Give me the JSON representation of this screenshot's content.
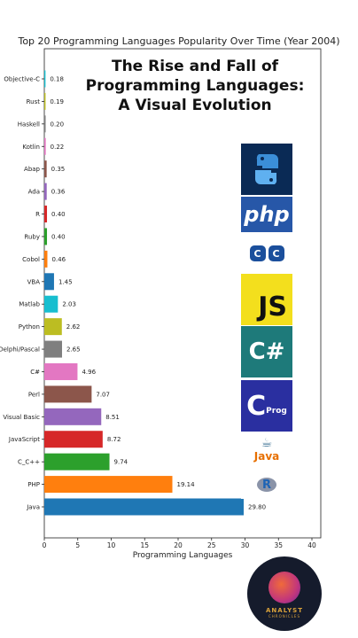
{
  "chart_data": {
    "type": "bar",
    "orientation": "horizontal",
    "title": "Top 20 Programming Languages Popularity Over Time (Year 2004)",
    "xlabel": "Programming Languages",
    "ylabel": "",
    "xlim": [
      0,
      41
    ],
    "x_ticks": [
      "0",
      "5",
      "10",
      "15",
      "20",
      "25",
      "30",
      "35",
      "40"
    ],
    "x_tick_values": [
      0,
      5,
      10,
      15,
      20,
      25,
      30,
      35,
      40
    ],
    "grid": false,
    "legend": "none",
    "bars": [
      {
        "label": "Objective-C",
        "value": 0.18,
        "value_label": "0.18",
        "color": "#17becf"
      },
      {
        "label": "Rust",
        "value": 0.19,
        "value_label": "0.19",
        "color": "#bcbd22"
      },
      {
        "label": "Haskell",
        "value": 0.2,
        "value_label": "0.20",
        "color": "#7f7f7f"
      },
      {
        "label": "Kotlin",
        "value": 0.22,
        "value_label": "0.22",
        "color": "#e377c2"
      },
      {
        "label": "Abap",
        "value": 0.35,
        "value_label": "0.35",
        "color": "#8c564b"
      },
      {
        "label": "Ada",
        "value": 0.36,
        "value_label": "0.36",
        "color": "#9467bd"
      },
      {
        "label": "R",
        "value": 0.4,
        "value_label": "0.40",
        "color": "#d62728"
      },
      {
        "label": "Ruby",
        "value": 0.4,
        "value_label": "0.40",
        "color": "#2ca02c"
      },
      {
        "label": "Cobol",
        "value": 0.46,
        "value_label": "0.46",
        "color": "#ff7f0e"
      },
      {
        "label": "VBA",
        "value": 1.45,
        "value_label": "1.45",
        "color": "#1f77b4"
      },
      {
        "label": "Matlab",
        "value": 2.03,
        "value_label": "2.03",
        "color": "#17becf"
      },
      {
        "label": "Python",
        "value": 2.62,
        "value_label": "2.62",
        "color": "#bcbd22"
      },
      {
        "label": "Delphi/Pascal",
        "value": 2.65,
        "value_label": "2.65",
        "color": "#7f7f7f"
      },
      {
        "label": "C#",
        "value": 4.96,
        "value_label": "4.96",
        "color": "#e377c2"
      },
      {
        "label": "Perl",
        "value": 7.07,
        "value_label": "7.07",
        "color": "#8c564b"
      },
      {
        "label": "Visual Basic",
        "value": 8.51,
        "value_label": "8.51",
        "color": "#9467bd"
      },
      {
        "label": "JavaScript",
        "value": 8.72,
        "value_label": "8.72",
        "color": "#d62728"
      },
      {
        "label": "C_C++",
        "value": 9.74,
        "value_label": "9.74",
        "color": "#2ca02c"
      },
      {
        "label": "PHP",
        "value": 19.14,
        "value_label": "19.14",
        "color": "#ff7f0e"
      },
      {
        "label": "Java",
        "value": 29.8,
        "value_label": "29.80",
        "color": "#1f77b4"
      }
    ]
  },
  "overlay_title": {
    "line1": "The Rise and Fall of",
    "line2": "Programming Languages:",
    "line3": "A Visual Evolution"
  },
  "logos": {
    "php_text": "php",
    "cpp_text": "C",
    "js_text": "JS",
    "csharp_text": "C#",
    "c_text": "C",
    "c_sub": "Prog",
    "java_text": "Java",
    "r_text": "R"
  },
  "badge": {
    "line1": "ANALYST",
    "line2": "CHRONICLES"
  },
  "colors": {
    "axis": "#222222",
    "text": "#222222"
  }
}
